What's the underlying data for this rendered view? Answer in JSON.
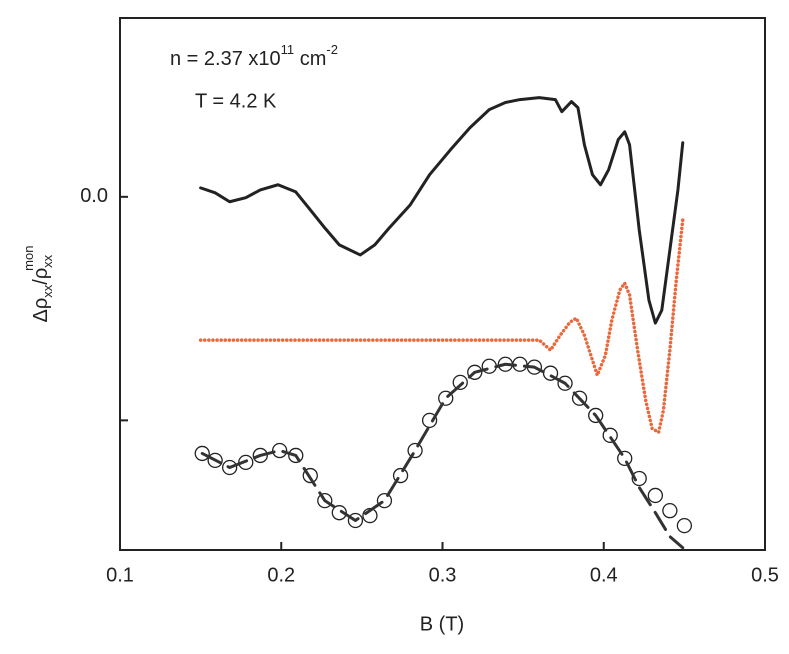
{
  "chart_data": {
    "type": "line",
    "annotations": [
      [
        "n = 2.37 x10",
        "11",
        " cm",
        "-2"
      ],
      [
        "T = 4.2 K"
      ]
    ],
    "x_label": "B (T)",
    "y_label": [
      "Δρ",
      "xx",
      "/ρ",
      "xx",
      "mon"
    ],
    "xlim": [
      0.1,
      0.5
    ],
    "xticks": [
      0.1,
      0.2,
      0.3,
      0.4,
      0.5
    ],
    "ylim": [
      -0.158,
      0.08
    ],
    "yticks": [
      {
        "value": 0,
        "label": "0.0"
      },
      {
        "value": -0.1,
        "label": null
      }
    ],
    "series": [
      {
        "style": "line",
        "color": "#222222",
        "x": [
          0.15,
          0.159,
          0.168,
          0.178,
          0.187,
          0.198,
          0.209,
          0.218,
          0.227,
          0.236,
          0.249,
          0.258,
          0.267,
          0.28,
          0.292,
          0.305,
          0.317,
          0.329,
          0.339,
          0.348,
          0.36,
          0.37,
          0.374,
          0.38,
          0.384,
          0.388,
          0.393,
          0.398,
          0.403,
          0.409,
          0.413,
          0.416,
          0.422,
          0.428,
          0.432,
          0.436,
          0.441,
          0.446,
          0.449
        ],
        "values": [
          0.004,
          0.0018,
          -0.0022,
          -0.0004,
          0.0031,
          0.0054,
          0.0022,
          -0.0058,
          -0.0139,
          -0.0215,
          -0.026,
          -0.0215,
          -0.0139,
          -0.0036,
          0.0099,
          0.0211,
          0.0309,
          0.039,
          0.0422,
          0.0435,
          0.0444,
          0.0435,
          0.0381,
          0.0426,
          0.0399,
          0.0233,
          0.0099,
          0.0054,
          0.0121,
          0.0256,
          0.0291,
          0.0233,
          -0.0148,
          -0.0462,
          -0.0565,
          -0.0507,
          -0.0238,
          0.0031,
          0.0242
        ]
      },
      {
        "style": "dotted",
        "color": "#e8693c",
        "x": [
          0.15,
          0.212,
          0.274,
          0.336,
          0.36,
          0.367,
          0.373,
          0.379,
          0.383,
          0.388,
          0.393,
          0.396,
          0.401,
          0.405,
          0.41,
          0.413,
          0.416,
          0.421,
          0.426,
          0.43,
          0.434,
          0.437,
          0.441,
          0.445,
          0.449
        ],
        "values": [
          -0.0641,
          -0.0641,
          -0.0641,
          -0.0641,
          -0.0641,
          -0.0686,
          -0.0619,
          -0.0561,
          -0.0543,
          -0.0619,
          -0.0731,
          -0.0798,
          -0.0709,
          -0.0552,
          -0.0417,
          -0.0386,
          -0.0439,
          -0.0686,
          -0.091,
          -0.1036,
          -0.1054,
          -0.0955,
          -0.0686,
          -0.0372,
          -0.0103
        ]
      },
      {
        "style": "markers",
        "color": "#222222",
        "x": [
          0.151,
          0.159,
          0.168,
          0.178,
          0.187,
          0.199,
          0.209,
          0.218,
          0.227,
          0.236,
          0.246,
          0.255,
          0.264,
          0.274,
          0.283,
          0.292,
          0.302,
          0.311,
          0.32,
          0.329,
          0.339,
          0.348,
          0.357,
          0.367,
          0.376,
          0.385,
          0.395,
          0.404,
          0.413,
          0.422,
          0.432,
          0.441,
          0.45
        ],
        "values": [
          -0.1148,
          -0.1179,
          -0.1211,
          -0.1188,
          -0.1157,
          -0.1135,
          -0.1157,
          -0.1247,
          -0.1359,
          -0.1413,
          -0.1448,
          -0.1426,
          -0.1359,
          -0.1247,
          -0.1135,
          -0.1,
          -0.0901,
          -0.083,
          -0.0785,
          -0.0758,
          -0.0749,
          -0.0749,
          -0.0762,
          -0.0789,
          -0.0834,
          -0.0901,
          -0.0978,
          -0.1067,
          -0.117,
          -0.126,
          -0.1336,
          -0.1404,
          -0.1471
        ]
      },
      {
        "style": "dashed",
        "color": "#333333",
        "x": [
          0.151,
          0.168,
          0.187,
          0.199,
          0.209,
          0.227,
          0.246,
          0.264,
          0.283,
          0.302,
          0.32,
          0.339,
          0.357,
          0.376,
          0.395,
          0.413,
          0.422,
          0.432,
          0.441,
          0.449
        ],
        "values": [
          -0.1148,
          -0.1211,
          -0.1157,
          -0.1135,
          -0.1157,
          -0.1359,
          -0.1448,
          -0.1359,
          -0.1135,
          -0.0901,
          -0.0785,
          -0.0749,
          -0.0762,
          -0.0834,
          -0.0978,
          -0.117,
          -0.13,
          -0.1413,
          -0.152,
          -0.157
        ]
      }
    ]
  }
}
